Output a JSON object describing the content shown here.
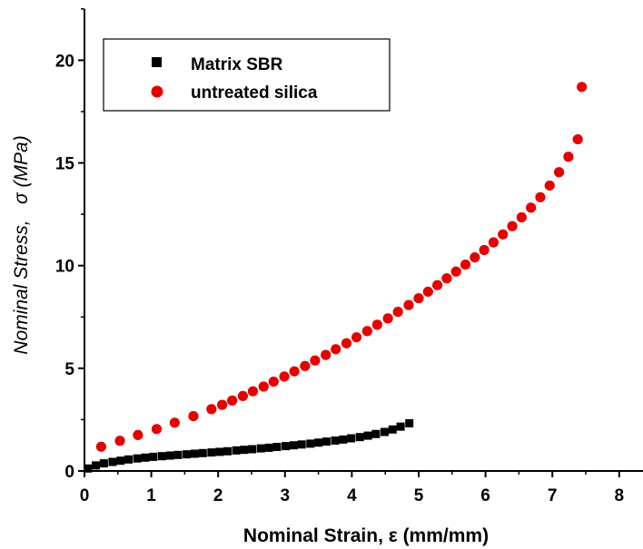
{
  "chart_data": {
    "type": "scatter",
    "xlabel": "Nominal Strain, ε (mm/mm)",
    "ylabel": "Nominal Stress,   σ (MPa)",
    "xlim": [
      0,
      8.6
    ],
    "ylim": [
      0,
      22.5
    ],
    "x_ticks": [
      0,
      1,
      2,
      3,
      4,
      5,
      6,
      7,
      8
    ],
    "y_ticks": [
      0,
      5,
      10,
      15,
      20
    ],
    "grid": false,
    "legend_position": "top-left",
    "series": [
      {
        "name": "Matrix SBR",
        "marker": "square",
        "color": "#000000",
        "x": [
          0.05,
          0.17,
          0.29,
          0.42,
          0.54,
          0.66,
          0.79,
          0.91,
          1.03,
          1.16,
          1.28,
          1.4,
          1.53,
          1.65,
          1.77,
          1.9,
          2.02,
          2.14,
          2.27,
          2.39,
          2.51,
          2.64,
          2.76,
          2.88,
          3.01,
          3.13,
          3.25,
          3.38,
          3.5,
          3.62,
          3.75,
          3.87,
          3.99,
          4.12,
          4.24,
          4.36,
          4.49,
          4.61,
          4.73,
          4.86
        ],
        "y": [
          0.12,
          0.27,
          0.37,
          0.44,
          0.5,
          0.56,
          0.61,
          0.65,
          0.69,
          0.72,
          0.75,
          0.78,
          0.81,
          0.84,
          0.87,
          0.9,
          0.93,
          0.96,
          1.0,
          1.03,
          1.06,
          1.1,
          1.13,
          1.17,
          1.21,
          1.25,
          1.29,
          1.33,
          1.38,
          1.43,
          1.48,
          1.53,
          1.59,
          1.65,
          1.72,
          1.8,
          1.9,
          2.02,
          2.16,
          2.32
        ]
      },
      {
        "name": "untreated silica",
        "marker": "circle",
        "color": "#e60000",
        "x": [
          0.25,
          0.53,
          0.8,
          1.08,
          1.35,
          1.63,
          1.9,
          2.06,
          2.21,
          2.37,
          2.52,
          2.68,
          2.83,
          2.99,
          3.14,
          3.3,
          3.45,
          3.61,
          3.76,
          3.92,
          4.07,
          4.23,
          4.38,
          4.54,
          4.69,
          4.85,
          5.0,
          5.14,
          5.28,
          5.42,
          5.56,
          5.7,
          5.84,
          5.98,
          6.12,
          6.26,
          6.4,
          6.54,
          6.68,
          6.82,
          6.96,
          7.1,
          7.24,
          7.38,
          7.44
        ],
        "y": [
          1.18,
          1.47,
          1.75,
          2.04,
          2.35,
          2.67,
          3.01,
          3.22,
          3.43,
          3.65,
          3.88,
          4.11,
          4.35,
          4.6,
          4.85,
          5.11,
          5.38,
          5.65,
          5.93,
          6.22,
          6.51,
          6.81,
          7.12,
          7.43,
          7.75,
          8.08,
          8.41,
          8.73,
          9.05,
          9.38,
          9.71,
          10.05,
          10.4,
          10.76,
          11.13,
          11.52,
          11.92,
          12.35,
          12.82,
          13.33,
          13.9,
          14.55,
          15.3,
          16.15,
          18.7
        ]
      }
    ]
  }
}
